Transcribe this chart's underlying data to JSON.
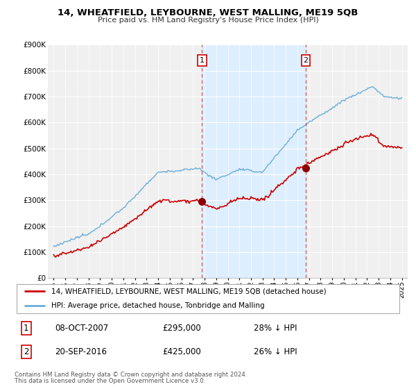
{
  "title": "14, WHEATFIELD, LEYBOURNE, WEST MALLING, ME19 5QB",
  "subtitle": "Price paid vs. HM Land Registry's House Price Index (HPI)",
  "ylim": [
    0,
    900000
  ],
  "yticks": [
    0,
    100000,
    200000,
    300000,
    400000,
    500000,
    600000,
    700000,
    800000,
    900000
  ],
  "ytick_labels": [
    "£0",
    "£100K",
    "£200K",
    "£300K",
    "£400K",
    "£500K",
    "£600K",
    "£700K",
    "£800K",
    "£900K"
  ],
  "sale1_date": 2007.78,
  "sale1_price": 295000,
  "sale1_label": "1",
  "sale2_date": 2016.72,
  "sale2_price": 425000,
  "sale2_label": "2",
  "hpi_color": "#6baed6",
  "price_color": "#cc0000",
  "shaded_color": "#ddeeff",
  "annotation_box_color": "#cc0000",
  "plot_bg_color": "#f0f0f0",
  "legend_entry1": "14, WHEATFIELD, LEYBOURNE, WEST MALLING, ME19 5QB (detached house)",
  "legend_entry2": "HPI: Average price, detached house, Tonbridge and Malling",
  "footnote1": "Contains HM Land Registry data © Crown copyright and database right 2024.",
  "footnote2": "This data is licensed under the Open Government Licence v3.0.",
  "table_row1_num": "1",
  "table_row1_date": "08-OCT-2007",
  "table_row1_price": "£295,000",
  "table_row1_hpi": "28% ↓ HPI",
  "table_row2_num": "2",
  "table_row2_date": "20-SEP-2016",
  "table_row2_price": "£425,000",
  "table_row2_hpi": "26% ↓ HPI",
  "xlim_start": 1994.5,
  "xlim_end": 2025.5,
  "xtick_years": [
    1995,
    1996,
    1997,
    1998,
    1999,
    2000,
    2001,
    2002,
    2003,
    2004,
    2005,
    2006,
    2007,
    2008,
    2009,
    2010,
    2011,
    2012,
    2013,
    2014,
    2015,
    2016,
    2017,
    2018,
    2019,
    2020,
    2021,
    2022,
    2023,
    2024,
    2025
  ]
}
